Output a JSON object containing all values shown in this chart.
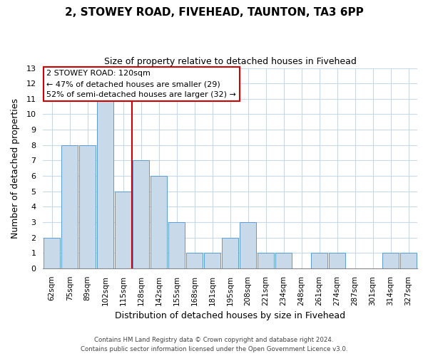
{
  "title": "2, STOWEY ROAD, FIVEHEAD, TAUNTON, TA3 6PP",
  "subtitle": "Size of property relative to detached houses in Fivehead",
  "xlabel": "Distribution of detached houses by size in Fivehead",
  "ylabel": "Number of detached properties",
  "bar_labels": [
    "62sqm",
    "75sqm",
    "89sqm",
    "102sqm",
    "115sqm",
    "128sqm",
    "142sqm",
    "155sqm",
    "168sqm",
    "181sqm",
    "195sqm",
    "208sqm",
    "221sqm",
    "234sqm",
    "248sqm",
    "261sqm",
    "274sqm",
    "287sqm",
    "301sqm",
    "314sqm",
    "327sqm"
  ],
  "bar_values": [
    2,
    8,
    8,
    11,
    5,
    7,
    6,
    3,
    1,
    1,
    2,
    3,
    1,
    1,
    0,
    1,
    1,
    0,
    0,
    1,
    1
  ],
  "bar_color": "#c8d9ea",
  "bar_edgecolor": "#5b9bd5",
  "ylim": [
    0,
    13
  ],
  "yticks": [
    0,
    1,
    2,
    3,
    4,
    5,
    6,
    7,
    8,
    9,
    10,
    11,
    12,
    13
  ],
  "red_line_x": 4.5,
  "annotation_title": "2 STOWEY ROAD: 120sqm",
  "annotation_line1": "← 47% of detached houses are smaller (29)",
  "annotation_line2": "52% of semi-detached houses are larger (32) →",
  "annotation_box_color": "#ffffff",
  "annotation_box_edgecolor": "#cc0000",
  "footer_line1": "Contains HM Land Registry data © Crown copyright and database right 2024.",
  "footer_line2": "Contains public sector information licensed under the Open Government Licence v3.0.",
  "background_color": "#ffffff",
  "grid_color": "#c8d9ea"
}
